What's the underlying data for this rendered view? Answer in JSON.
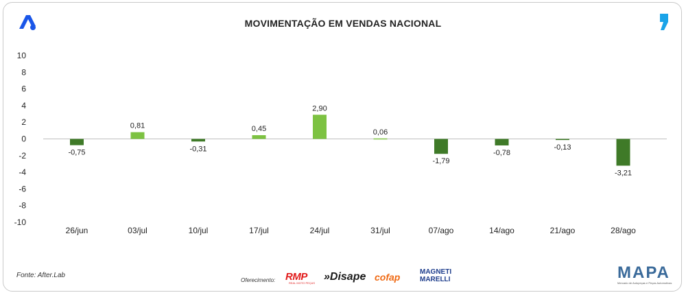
{
  "header": {
    "title": "MOVIMENTAÇÃO EM VENDAS NACIONAL",
    "left_logo_icon": "a-logo-icon",
    "right_logo_icon": "comma-logo-icon"
  },
  "colors": {
    "positive": "#7dc242",
    "negative": "#3f7a28",
    "logo_blue": "#1a56e8",
    "logo_cyan": "#1aa3e8"
  },
  "chart_data": {
    "type": "bar",
    "title": "MOVIMENTAÇÃO EM VENDAS NACIONAL",
    "xlabel": "",
    "ylabel": "",
    "ylim": [
      -10,
      10
    ],
    "yticks": [
      10,
      8,
      6,
      4,
      2,
      0,
      -2,
      -4,
      -6,
      -8,
      -10
    ],
    "grid": false,
    "categories": [
      "26/jun",
      "03/jul",
      "10/jul",
      "17/jul",
      "24/jul",
      "31/jul",
      "07/ago",
      "14/ago",
      "21/ago",
      "28/ago"
    ],
    "values": [
      -0.75,
      0.81,
      -0.31,
      0.45,
      2.9,
      0.06,
      -1.79,
      -0.78,
      -0.13,
      -3.21
    ],
    "value_labels": [
      "-0,75",
      "0,81",
      "-0,31",
      "0,45",
      "2,90",
      "0,06",
      "-1,79",
      "-0,78",
      "-0,13",
      "-3,21"
    ]
  },
  "footer": {
    "source": "Fonte: After.Lab",
    "sponsor_label": "Oferecimento:",
    "sponsors": {
      "rmp": "RMP",
      "rmp_sub": "REAL MOTO PEÇAS",
      "disape": "»Disape",
      "cofap": "cofap",
      "magneti_line1": "MAGNETI",
      "magneti_line2": "MARELLI"
    },
    "mapa": "MAPA",
    "mapa_sub": "Mercado de Autopeças e Peças Automotivas"
  }
}
